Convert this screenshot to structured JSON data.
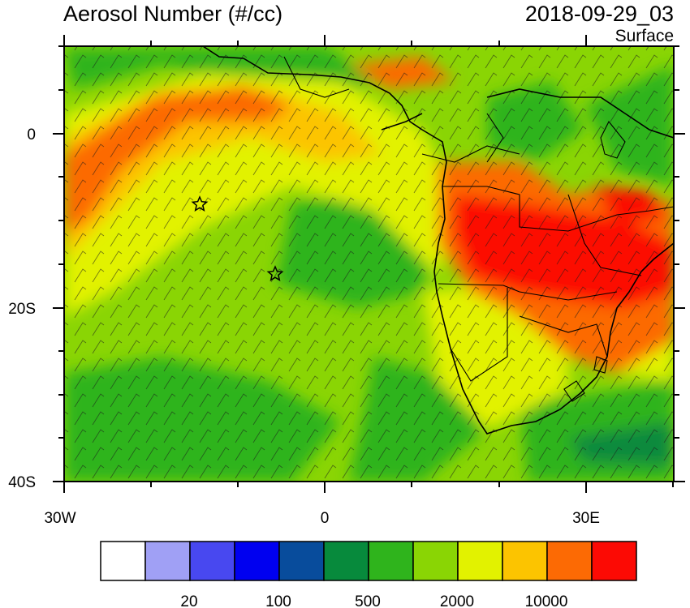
{
  "header": {
    "title": "Aerosol Number (#/cc)",
    "datetime": "2018-09-29_03",
    "level": "Surface"
  },
  "map": {
    "region": "South Atlantic and southern Africa",
    "lon_range": [
      -30,
      40
    ],
    "lat_range": [
      -40,
      10
    ],
    "x_ticks": [
      "30W",
      "0",
      "30E"
    ],
    "y_ticks": [
      "0",
      "20S",
      "40S"
    ],
    "overlays": [
      "filled-contours",
      "wind-barbs",
      "country-borders",
      "coastlines"
    ],
    "markers": [
      {
        "symbol": "star",
        "lon": -14.4,
        "lat": -7.9
      },
      {
        "symbol": "star",
        "lon": -5.7,
        "lat": -16.0
      }
    ]
  },
  "colorbar": {
    "colors": [
      "#ffffff",
      "#a0a0f5",
      "#4848f0",
      "#0000f0",
      "#084c9c",
      "#078a3c",
      "#2fb41c",
      "#8ad504",
      "#e2f200",
      "#fcc400",
      "#fc6a04",
      "#fc0a04"
    ],
    "labels": [
      "20",
      "100",
      "500",
      "2000",
      "10000"
    ]
  }
}
